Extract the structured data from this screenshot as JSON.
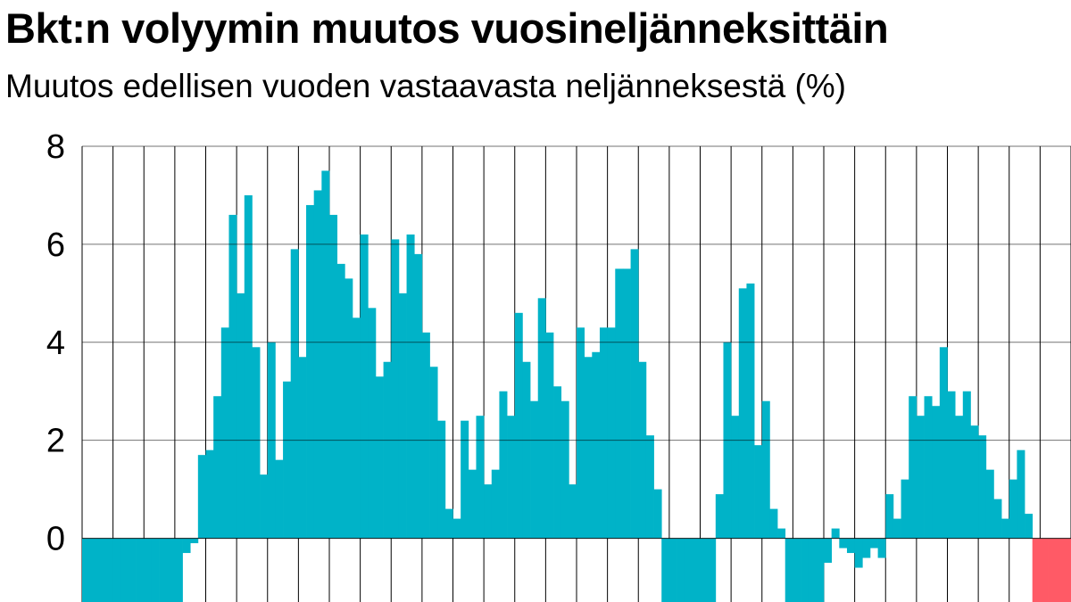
{
  "chart_data": {
    "type": "bar",
    "title": "Bkt:n volyymin muutos vuosineljänneksittäin",
    "subtitle": "Muutos edellisen vuoden vastaavasta neljänneksestä (%)",
    "xlabel": "",
    "ylabel": "",
    "ylim": [
      -1.3,
      8
    ],
    "y_ticks": [
      0,
      2,
      4,
      6,
      8
    ],
    "grid": {
      "horizontal": true,
      "vertical": true
    },
    "series": [
      {
        "color": "#00b3c8",
        "values": [
          -1.6,
          -1.6,
          -1.6,
          -1.6,
          -1.6,
          -1.6,
          -1.6,
          -1.6,
          -1.6,
          -1.6,
          -1.6,
          -1.6,
          -1.6,
          -0.3,
          -0.1,
          1.7,
          1.8,
          2.9,
          4.3,
          6.6,
          5.0,
          7.0,
          3.9,
          1.3,
          4.0,
          1.6,
          3.2,
          5.9,
          3.7,
          6.8,
          7.1,
          7.5,
          6.6,
          5.6,
          5.3,
          4.5,
          6.2,
          4.7,
          3.3,
          3.6,
          6.1,
          5.0,
          6.2,
          5.8,
          4.2,
          3.5,
          2.4,
          0.6,
          0.4,
          2.4,
          1.4,
          2.5,
          1.1,
          1.4,
          3.0,
          2.5,
          4.6,
          3.6,
          2.8,
          4.9,
          4.2,
          3.1,
          2.8,
          1.1,
          4.3,
          3.7,
          3.8,
          4.3,
          4.3,
          5.5,
          5.5,
          5.9,
          3.6,
          2.1,
          1.0,
          -1.6,
          -1.6,
          -1.6,
          -1.6,
          -1.6,
          -1.6,
          -1.6,
          0.9,
          4.0,
          2.5,
          5.1,
          5.2,
          1.9,
          2.8,
          0.6,
          0.2,
          -1.6,
          -1.6,
          -1.6,
          -1.6,
          -1.6,
          -0.5,
          0.2,
          -0.2,
          -0.3,
          -0.6,
          -0.4,
          -0.2,
          -0.4,
          0.9,
          0.4,
          1.2,
          2.9,
          2.5,
          2.9,
          2.7,
          3.9,
          3.0,
          2.5,
          3.0,
          2.3,
          2.1,
          1.4,
          0.8,
          0.4,
          1.2,
          1.8,
          0.5
        ]
      },
      {
        "color": "#ff5a66",
        "values": [
          -1.6,
          -1.6,
          -1.6,
          -1.6,
          -1.6
        ]
      }
    ]
  }
}
